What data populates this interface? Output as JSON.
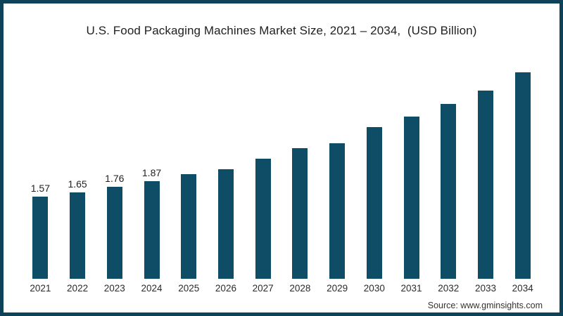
{
  "frame": {
    "border_color": "#0d4259",
    "background_color": "#ffffff"
  },
  "title": "U.S. Food Packaging Machines Market Size, 2021 – 2034,  (USD Billion)",
  "source": "Source: www.gminsights.com",
  "chart_data": {
    "type": "bar",
    "title": "U.S. Food Packaging Machines Market Size, 2021 – 2034,  (USD Billion)",
    "xlabel": "",
    "ylabel": "USD Billion",
    "categories": [
      "2021",
      "2022",
      "2023",
      "2024",
      "2025",
      "2026",
      "2027",
      "2028",
      "2029",
      "2030",
      "2031",
      "2032",
      "2033",
      "2034"
    ],
    "values": [
      1.57,
      1.65,
      1.76,
      1.87,
      2.0,
      2.1,
      2.3,
      2.5,
      2.6,
      2.9,
      3.1,
      3.35,
      3.6,
      3.95
    ],
    "data_labels": [
      "1.57",
      "1.65",
      "1.76",
      "1.87",
      "",
      "",
      "",
      "",
      "",
      "",
      "",
      "",
      "",
      ""
    ],
    "bar_color": "#0f4d66",
    "ylim": [
      0,
      4.4
    ],
    "grid": false,
    "legend": false,
    "axis_line": false
  }
}
